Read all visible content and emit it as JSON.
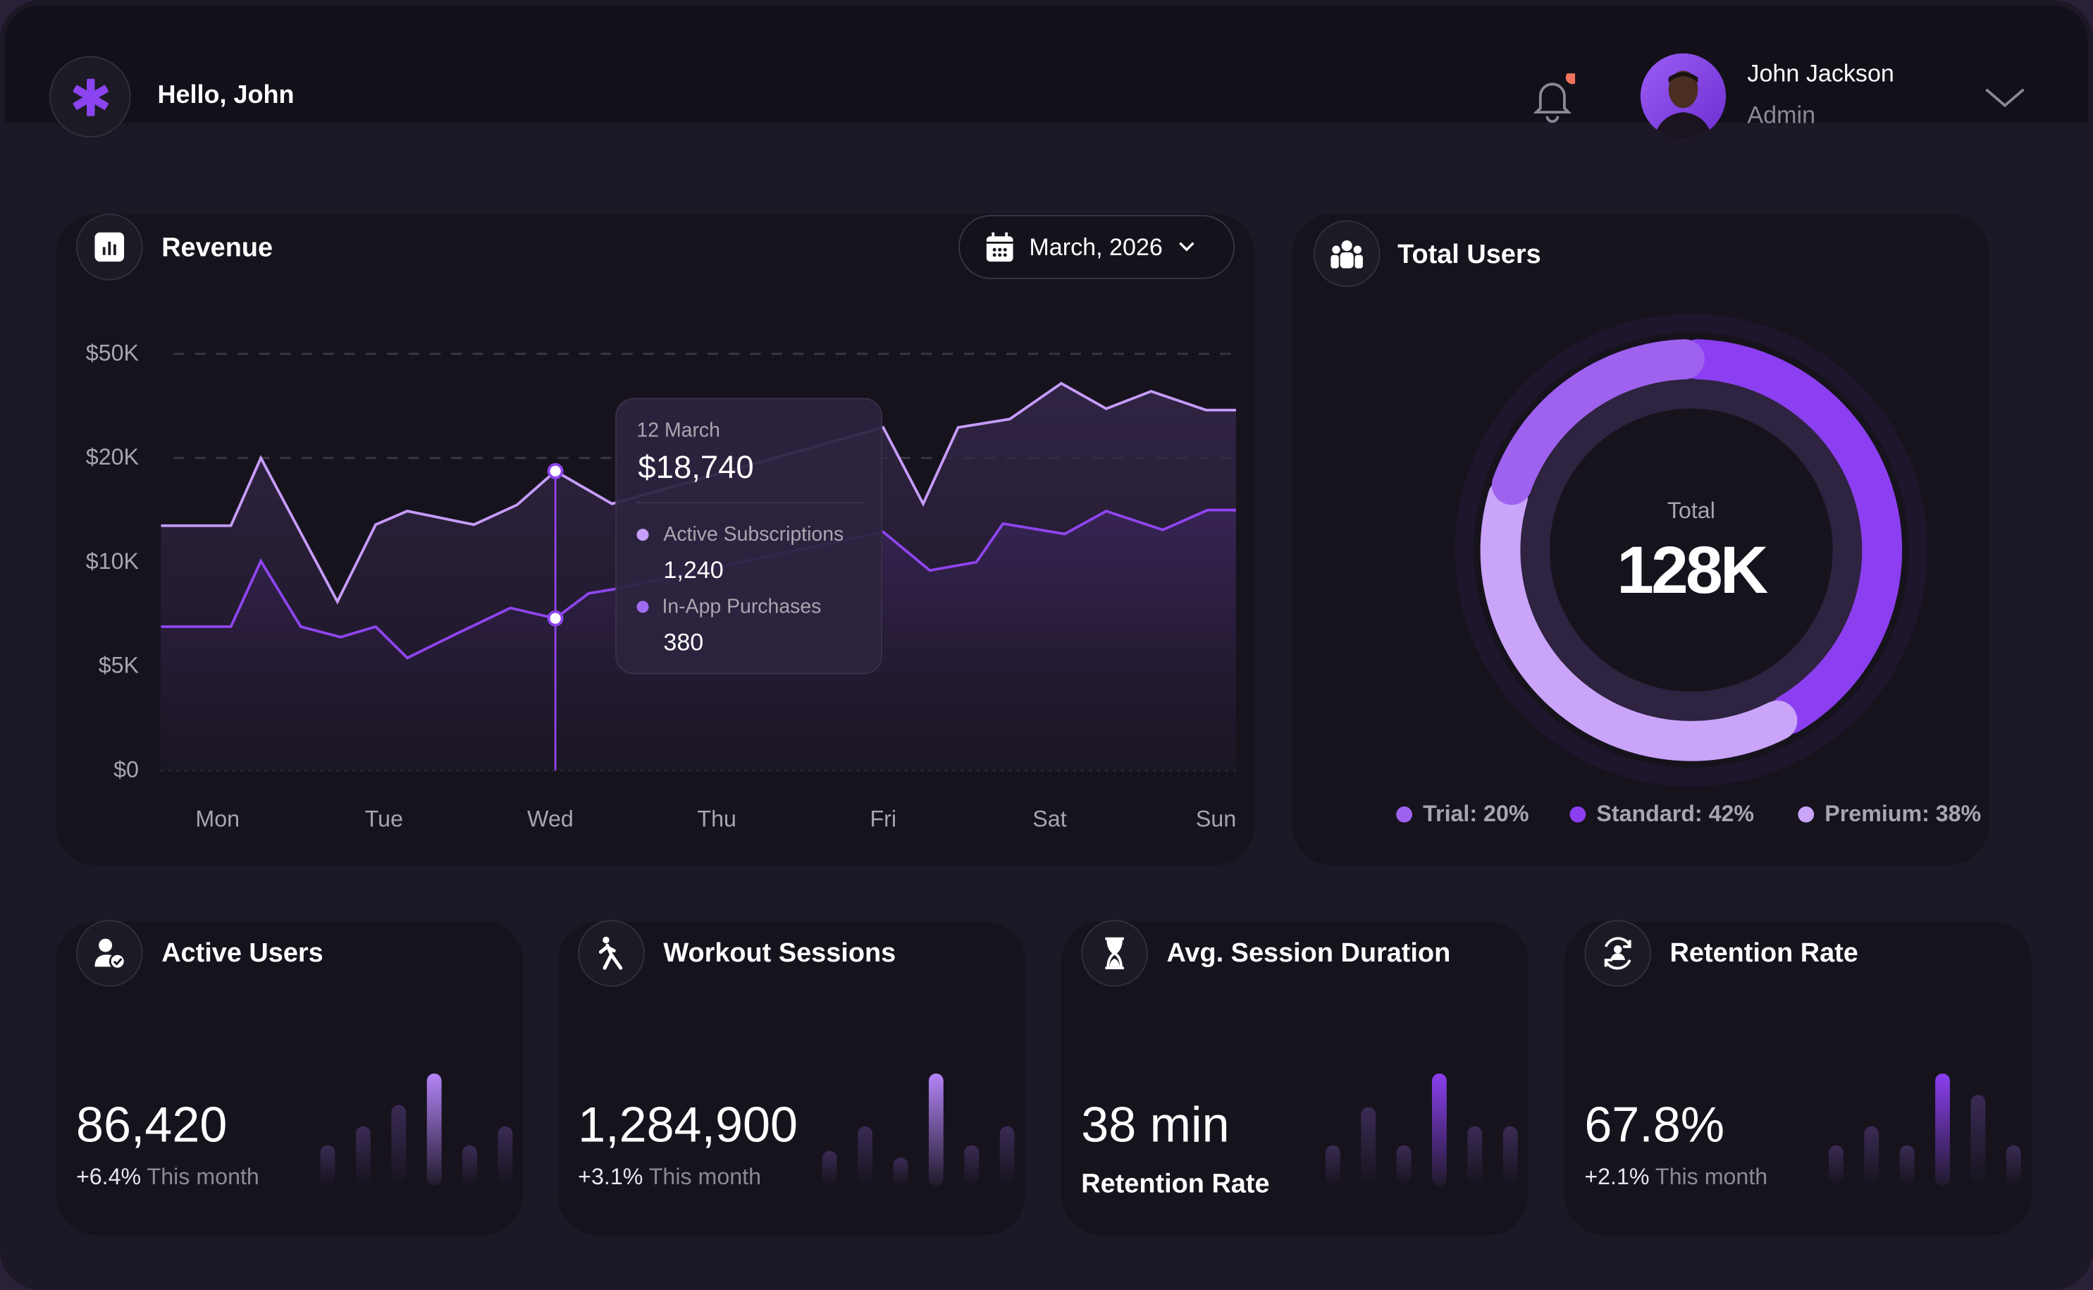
{
  "header": {
    "greeting": "Hello, John",
    "user_name": "John Jackson",
    "user_role": "Admin",
    "notification_dot_color": "#f2735f",
    "logo_icon": "asterisk-icon"
  },
  "revenue": {
    "title": "Revenue",
    "date_filter": "March, 2026",
    "tooltip": {
      "date": "12 March",
      "total": "$18,740",
      "items": [
        {
          "label": "Active Subscriptions",
          "value": "1,240",
          "color": "#c6a0fb"
        },
        {
          "label": "In-App Purchases",
          "value": "380",
          "color": "#a06cef"
        }
      ]
    }
  },
  "chart_data": {
    "type": "area",
    "title": "Revenue",
    "categories": [
      "Mon",
      "Tue",
      "Wed",
      "Thu",
      "Fri",
      "Sat",
      "Sun"
    ],
    "yticks": [
      {
        "label": "$0",
        "value": 0
      },
      {
        "label": "$5K",
        "value": 5000
      },
      {
        "label": "$10K",
        "value": 10000
      },
      {
        "label": "$20K",
        "value": 20000
      },
      {
        "label": "$50K",
        "value": 50000
      }
    ],
    "grid": true,
    "highlight": {
      "x": "Wed",
      "label": "12 March"
    },
    "series": [
      {
        "name": "Active Subscriptions",
        "color": "#c69cfb",
        "points": [
          [
            -0.34,
            13500
          ],
          [
            0.08,
            13500
          ],
          [
            0.26,
            20000
          ],
          [
            0.72,
            8100
          ],
          [
            0.95,
            13600
          ],
          [
            1.14,
            14900
          ],
          [
            1.54,
            13600
          ],
          [
            1.8,
            15500
          ],
          [
            2.03,
            18740
          ],
          [
            2.37,
            15600
          ],
          [
            4.0,
            28800
          ],
          [
            4.24,
            15600
          ],
          [
            4.45,
            28800
          ],
          [
            4.76,
            31200
          ],
          [
            5.07,
            41500
          ],
          [
            5.34,
            34200
          ],
          [
            5.61,
            39200
          ],
          [
            5.94,
            33800
          ],
          [
            6.12,
            33800
          ]
        ]
      },
      {
        "name": "In-App Purchases",
        "color": "#8f45ef",
        "points": [
          [
            -0.34,
            6900
          ],
          [
            0.08,
            6900
          ],
          [
            0.26,
            10100
          ],
          [
            0.5,
            6900
          ],
          [
            0.74,
            6400
          ],
          [
            0.95,
            6900
          ],
          [
            1.14,
            5400
          ],
          [
            1.42,
            6500
          ],
          [
            1.76,
            7800
          ],
          [
            2.03,
            7300
          ],
          [
            2.23,
            8500
          ],
          [
            2.38,
            8700
          ],
          [
            4.0,
            12900
          ],
          [
            4.28,
            9600
          ],
          [
            4.56,
            10000
          ],
          [
            4.72,
            13700
          ],
          [
            5.09,
            12700
          ],
          [
            5.34,
            14900
          ],
          [
            5.68,
            13100
          ],
          [
            5.95,
            15000
          ],
          [
            6.12,
            15000
          ]
        ]
      }
    ]
  },
  "total_users": {
    "title": "Total Users",
    "center_label": "Total",
    "center_value": "128K",
    "segments": [
      {
        "name": "Standard",
        "percent": 42,
        "color": "#8c3ff0",
        "legend": "Standard: 42%"
      },
      {
        "name": "Premium",
        "percent": 38,
        "color": "#c9a4f9",
        "legend": "Premium: 38%"
      },
      {
        "name": "Trial",
        "percent": 20,
        "color": "#9f62ef",
        "legend": "Trial: 20%"
      }
    ],
    "legend_order": [
      2,
      0,
      1
    ]
  },
  "stats": [
    {
      "title": "Active Users",
      "icon": "user-check-icon",
      "value": "86,420",
      "change": "+6.4%",
      "period": "This month",
      "bars": [
        0.36,
        0.53,
        0.72,
        1,
        0.36,
        0.53
      ]
    },
    {
      "title": "Workout Sessions",
      "icon": "running-icon",
      "value": "1,284,900",
      "change": "+3.1%",
      "period": "This month",
      "bars": [
        0.31,
        0.53,
        0.25,
        1,
        0.36,
        0.53
      ]
    },
    {
      "title": "Avg. Session Duration",
      "icon": "hourglass-icon",
      "value": "38 min",
      "change": "",
      "period": "Retention Rate",
      "bars": [
        0.36,
        0.7,
        0.36,
        1,
        0.53,
        0.53
      ]
    },
    {
      "title": "Retention Rate",
      "icon": "user-refresh-icon",
      "value": "67.8%",
      "change": "+2.1%",
      "period": "This month",
      "bars": [
        0.36,
        0.53,
        0.36,
        1,
        0.81,
        0.36
      ]
    }
  ]
}
